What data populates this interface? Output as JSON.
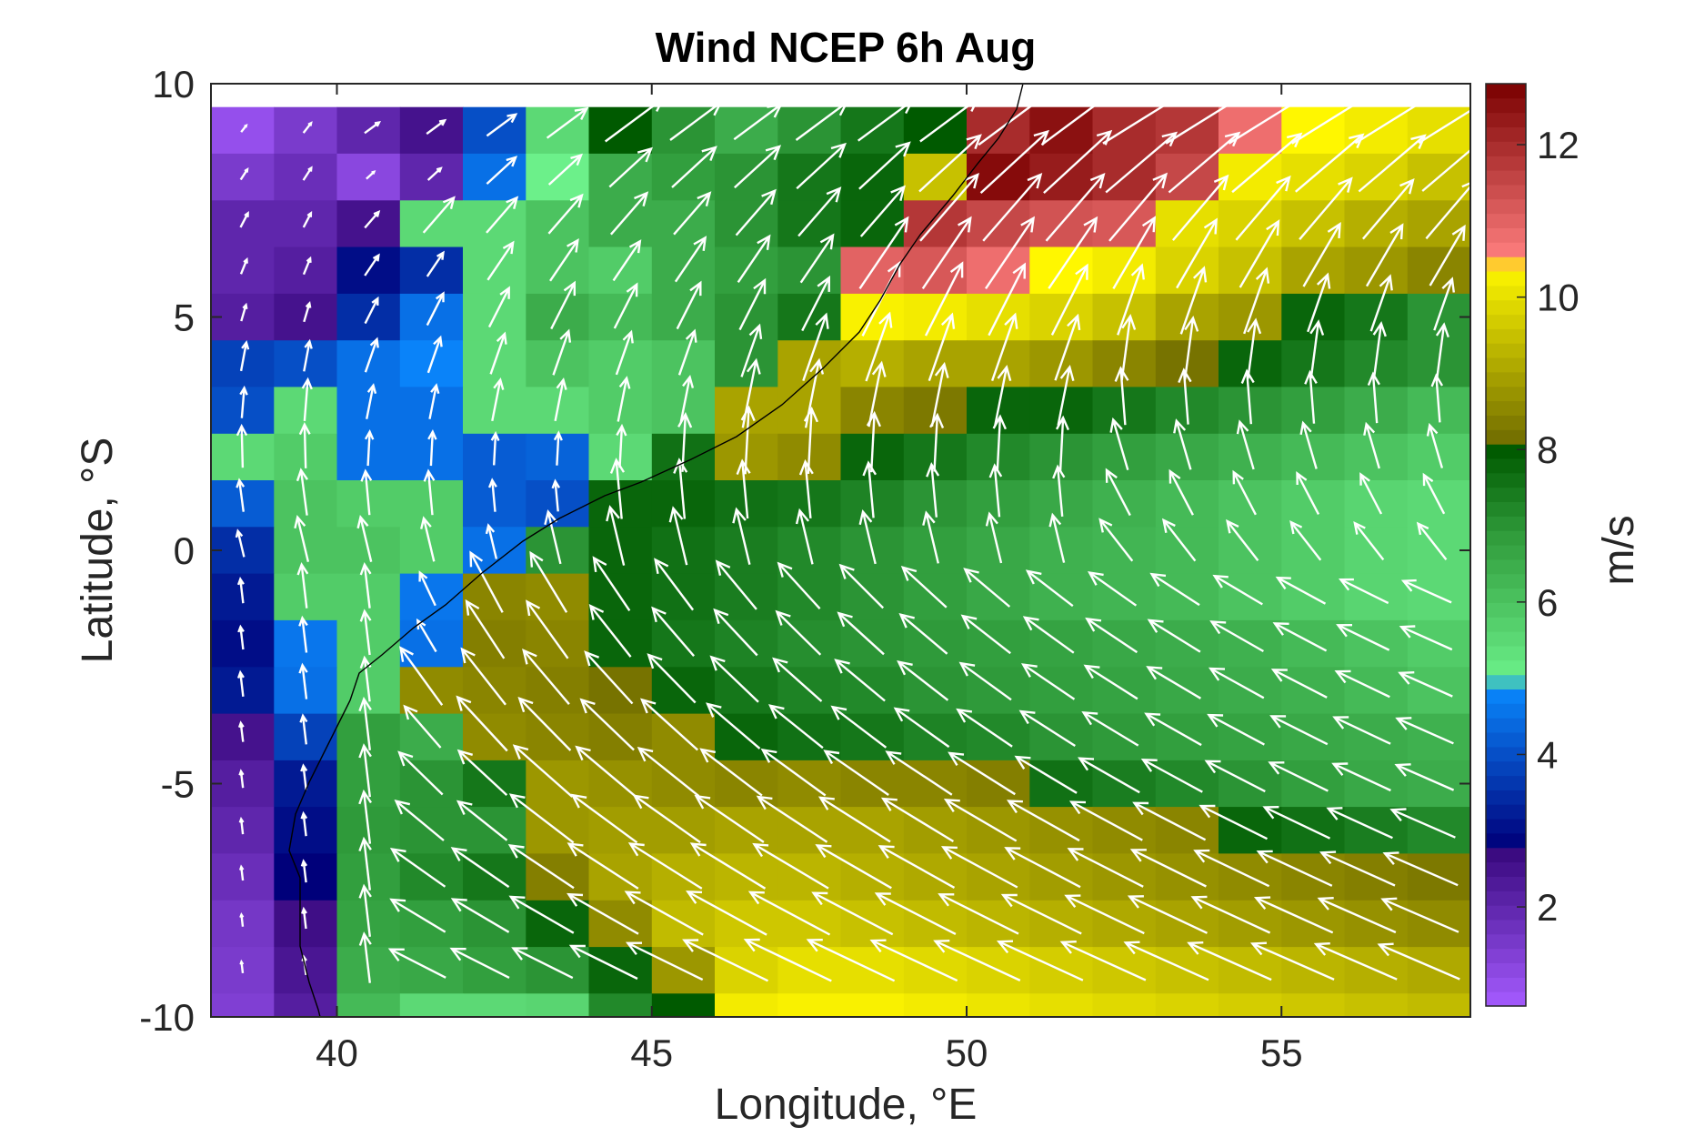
{
  "chart_data": {
    "type": "heatmap",
    "title": "Wind NCEP 6h Aug",
    "xlabel": "Longitude, °E",
    "ylabel": "Latitude, °S",
    "xlim": [
      38,
      58
    ],
    "ylim": [
      -10,
      10
    ],
    "xticks": [
      40,
      45,
      50,
      55
    ],
    "yticks": [
      10,
      5,
      0,
      -5,
      -10
    ],
    "xtick_labels": [
      "40",
      "45",
      "50",
      "55"
    ],
    "ytick_labels": [
      "10",
      "5",
      "0",
      "-5",
      "-10"
    ],
    "colorbar": {
      "label": "m/s",
      "range": [
        0.7,
        12.8
      ],
      "ticks": [
        2,
        4,
        6,
        8,
        10,
        12
      ],
      "tick_labels": [
        "2",
        "4",
        "6",
        "8",
        "10",
        "12"
      ],
      "stops": [
        {
          "v": 0.7,
          "color": "#a55bff"
        },
        {
          "v": 2.7,
          "color": "#3a0a80"
        },
        {
          "v": 2.8,
          "color": "#00007a"
        },
        {
          "v": 4.9,
          "color": "#0a8aff"
        },
        {
          "v": 5.0,
          "color": "#6cf08a"
        },
        {
          "v": 6.9,
          "color": "#2f9a3a"
        },
        {
          "v": 8.0,
          "color": "#005a00"
        },
        {
          "v": 8.05,
          "color": "#6e6a00"
        },
        {
          "v": 10.4,
          "color": "#fff700"
        },
        {
          "v": 10.5,
          "color": "#ff7f7f"
        },
        {
          "v": 12.8,
          "color": "#7a0000"
        }
      ]
    },
    "grid": {
      "lon_centers": [
        38.5,
        39.5,
        40.5,
        41.5,
        42.5,
        43.5,
        44.5,
        45.5,
        46.5,
        47.5,
        48.5,
        49.5,
        50.5,
        51.5,
        52.5,
        53.5,
        54.5,
        55.5,
        56.5,
        57.5
      ],
      "lat_centers": [
        9.0,
        8.0,
        7.0,
        6.0,
        5.0,
        4.0,
        3.0,
        2.0,
        1.0,
        0.0,
        -1.0,
        -2.0,
        -3.0,
        -4.0,
        -5.0,
        -6.0,
        -7.0,
        -8.0,
        -9.0,
        -10.0
      ],
      "speed": [
        [
          1.0,
          1.5,
          2.0,
          2.5,
          4.0,
          5.5,
          8.0,
          7.0,
          6.5,
          7.0,
          7.5,
          8.0,
          12.0,
          12.5,
          12.0,
          11.8,
          10.8,
          10.4,
          10.2,
          10.0
        ],
        [
          1.5,
          1.8,
          1.2,
          2.0,
          4.5,
          5.0,
          6.5,
          6.8,
          7.0,
          7.5,
          7.8,
          9.5,
          12.6,
          12.3,
          12.0,
          11.5,
          10.2,
          10.0,
          9.8,
          9.5
        ],
        [
          2.0,
          2.0,
          2.5,
          5.5,
          5.5,
          6.0,
          6.5,
          6.5,
          7.0,
          7.5,
          7.8,
          11.8,
          11.5,
          11.3,
          11.2,
          10.0,
          9.8,
          9.5,
          9.2,
          9.0
        ],
        [
          2.0,
          2.2,
          3.0,
          3.5,
          5.5,
          6.0,
          5.8,
          6.5,
          6.8,
          7.0,
          11.0,
          11.2,
          10.8,
          10.4,
          10.2,
          9.8,
          9.5,
          9.0,
          8.8,
          8.5
        ],
        [
          2.2,
          2.5,
          3.5,
          4.5,
          5.5,
          6.5,
          6.2,
          6.5,
          7.0,
          7.5,
          10.3,
          10.2,
          10.0,
          9.8,
          9.5,
          9.0,
          8.8,
          7.8,
          7.5,
          7.0
        ],
        [
          3.8,
          4.0,
          4.5,
          4.8,
          5.5,
          6.0,
          5.8,
          6.0,
          7.0,
          9.0,
          9.2,
          9.0,
          9.0,
          8.8,
          8.5,
          8.2,
          7.8,
          7.5,
          7.2,
          7.0
        ],
        [
          4.0,
          5.5,
          4.5,
          4.5,
          5.5,
          5.5,
          5.8,
          6.0,
          9.0,
          9.0,
          8.5,
          8.3,
          7.8,
          7.8,
          7.5,
          7.2,
          7.0,
          6.8,
          6.5,
          6.2
        ],
        [
          5.5,
          5.8,
          4.5,
          4.5,
          4.2,
          4.3,
          5.5,
          7.6,
          8.8,
          8.6,
          7.8,
          7.5,
          7.2,
          7.0,
          6.8,
          6.6,
          6.4,
          6.2,
          6.0,
          5.8
        ],
        [
          4.2,
          6.0,
          5.8,
          5.8,
          4.2,
          4.0,
          7.8,
          7.8,
          7.6,
          7.5,
          7.3,
          7.0,
          6.8,
          6.6,
          6.4,
          6.2,
          6.0,
          5.8,
          5.6,
          5.5
        ],
        [
          3.5,
          6.0,
          6.0,
          5.8,
          4.5,
          7.0,
          7.8,
          7.6,
          7.4,
          7.2,
          7.0,
          6.8,
          6.6,
          6.4,
          6.3,
          6.2,
          6.0,
          5.8,
          5.6,
          5.5
        ],
        [
          3.2,
          5.8,
          5.8,
          4.6,
          8.5,
          8.6,
          7.8,
          7.6,
          7.4,
          7.2,
          7.0,
          6.8,
          6.6,
          6.4,
          6.3,
          6.2,
          6.0,
          5.8,
          5.6,
          5.5
        ],
        [
          3.0,
          4.6,
          5.8,
          4.5,
          8.4,
          8.5,
          7.8,
          7.5,
          7.3,
          7.1,
          7.0,
          6.9,
          6.8,
          6.7,
          6.6,
          6.5,
          6.4,
          6.2,
          6.0,
          5.8
        ],
        [
          3.2,
          4.5,
          5.8,
          8.6,
          8.5,
          8.4,
          8.2,
          7.8,
          7.5,
          7.3,
          7.2,
          7.0,
          6.9,
          6.8,
          6.7,
          6.6,
          6.5,
          6.4,
          6.2,
          6.0
        ],
        [
          2.5,
          3.8,
          6.8,
          6.5,
          8.6,
          8.5,
          8.4,
          8.6,
          7.8,
          7.6,
          7.5,
          7.3,
          7.2,
          7.0,
          6.9,
          6.8,
          6.7,
          6.6,
          6.5,
          6.4
        ],
        [
          2.2,
          3.2,
          6.8,
          7.0,
          7.5,
          8.8,
          8.7,
          8.6,
          8.5,
          8.6,
          8.5,
          8.5,
          8.4,
          7.6,
          7.4,
          7.2,
          7.0,
          6.8,
          6.6,
          6.5
        ],
        [
          2.0,
          3.0,
          6.9,
          7.0,
          7.0,
          8.8,
          8.9,
          8.9,
          9.0,
          9.0,
          9.0,
          8.9,
          8.8,
          8.7,
          8.6,
          8.5,
          7.8,
          7.6,
          7.4,
          7.2
        ],
        [
          1.8,
          2.8,
          6.8,
          7.2,
          7.5,
          8.4,
          9.0,
          9.2,
          9.3,
          9.3,
          9.2,
          9.1,
          9.0,
          8.9,
          8.8,
          8.7,
          8.6,
          8.5,
          8.4,
          8.3
        ],
        [
          1.6,
          2.6,
          6.7,
          6.8,
          7.0,
          7.8,
          8.6,
          9.4,
          9.6,
          9.6,
          9.5,
          9.4,
          9.3,
          9.2,
          9.1,
          9.0,
          8.9,
          8.8,
          8.7,
          8.6
        ],
        [
          1.5,
          2.4,
          6.5,
          6.6,
          6.8,
          7.0,
          7.8,
          8.8,
          9.8,
          10.0,
          10.0,
          9.9,
          9.8,
          9.7,
          9.6,
          9.5,
          9.4,
          9.3,
          9.2,
          9.1
        ],
        [
          1.4,
          2.2,
          6.2,
          5.5,
          5.5,
          5.6,
          7.2,
          8.0,
          10.2,
          10.3,
          10.3,
          10.2,
          10.1,
          10.0,
          9.9,
          9.8,
          9.7,
          9.6,
          9.5,
          9.4
        ]
      ]
    },
    "vectors": {
      "description_units": "m/s",
      "lon_start": 38.5,
      "lon_step": 1.0,
      "lat_start": 9.0,
      "lat_step": -1.0,
      "count_lon": 20,
      "count_lat": 20
    }
  }
}
